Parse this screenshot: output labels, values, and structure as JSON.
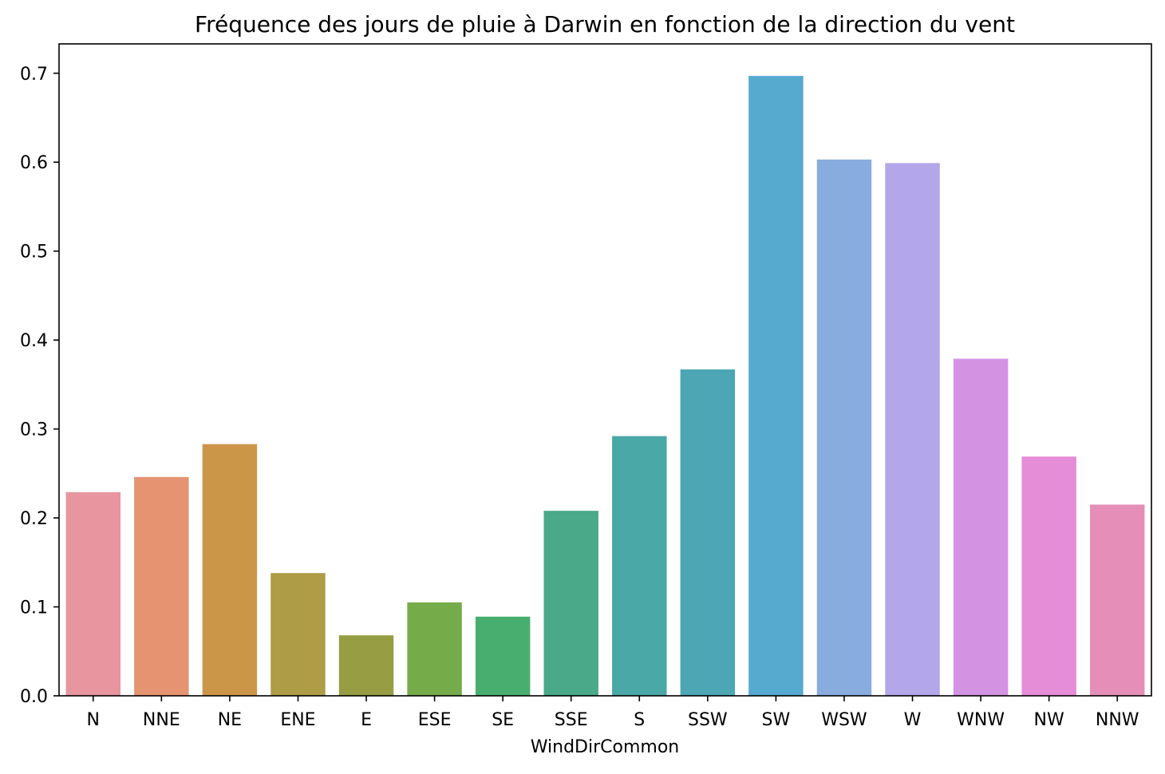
{
  "chart_data": {
    "type": "bar",
    "title": "Fréquence des jours de pluie à Darwin en fonction de la direction du vent",
    "xlabel": "WindDirCommon",
    "ylabel": "",
    "categories": [
      "N",
      "NNE",
      "NE",
      "ENE",
      "E",
      "ESE",
      "SE",
      "SSE",
      "S",
      "SSW",
      "SW",
      "WSW",
      "W",
      "WNW",
      "NW",
      "NNW"
    ],
    "values": [
      0.229,
      0.246,
      0.283,
      0.138,
      0.068,
      0.105,
      0.089,
      0.208,
      0.292,
      0.367,
      0.697,
      0.603,
      0.599,
      0.379,
      0.269,
      0.215
    ],
    "colors": [
      "#e8959f",
      "#e59371",
      "#cc9649",
      "#ae9c46",
      "#969d43",
      "#76ab4a",
      "#48ae70",
      "#49a989",
      "#4aa8a6",
      "#4ca6b4",
      "#56a9cf",
      "#89acdf",
      "#b3a6e9",
      "#d493e2",
      "#e68dd7",
      "#e58fb8"
    ],
    "yticks": [
      "0.0",
      "0.1",
      "0.2",
      "0.3",
      "0.4",
      "0.5",
      "0.6",
      "0.7"
    ],
    "ylim": [
      0,
      0.733
    ],
    "grid": false,
    "legend": "none"
  }
}
